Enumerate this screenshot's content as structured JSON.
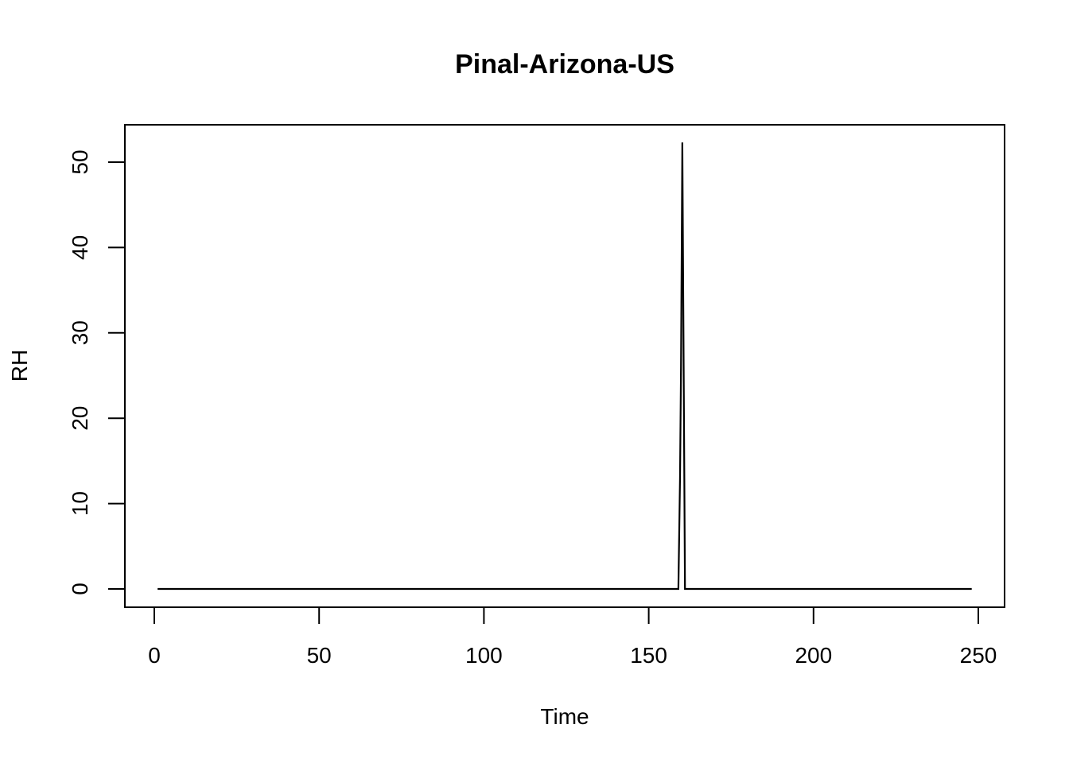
{
  "chart_data": {
    "type": "line",
    "title": "Pinal-Arizona-US",
    "xlabel": "Time",
    "ylabel": "RH",
    "xlim": [
      1,
      248
    ],
    "ylim": [
      0,
      52.3
    ],
    "xticks": [
      0,
      50,
      100,
      150,
      200,
      250
    ],
    "yticks": [
      0,
      10,
      20,
      30,
      40,
      50
    ],
    "grid": false,
    "line_color": "#000000",
    "series": [
      {
        "points": [
          [
            1,
            0
          ],
          [
            159,
            0
          ],
          [
            159.5,
            13
          ],
          [
            159.8,
            26
          ],
          [
            160.0,
            39
          ],
          [
            160.2,
            52.3
          ],
          [
            160.4,
            39
          ],
          [
            160.6,
            26
          ],
          [
            160.8,
            13
          ],
          [
            161,
            0
          ],
          [
            248,
            0
          ]
        ]
      }
    ]
  }
}
